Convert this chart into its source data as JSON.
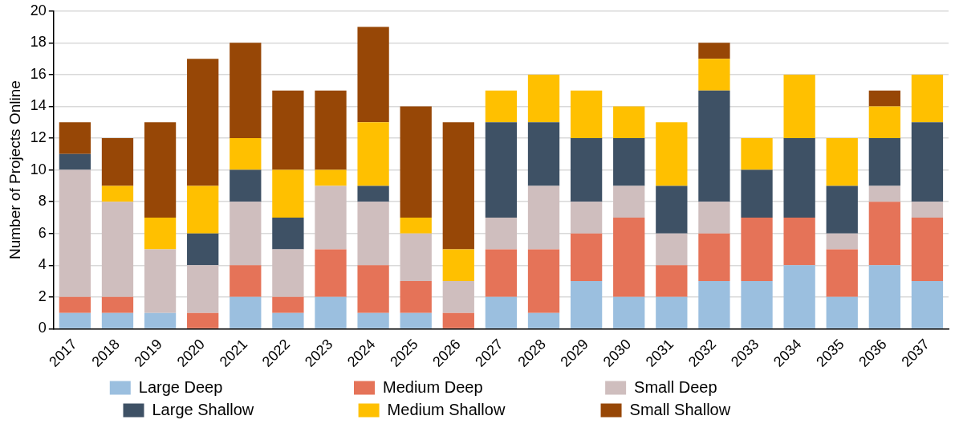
{
  "chart_data": {
    "type": "bar",
    "stacked": true,
    "ylabel": "Number of Projects Online",
    "categories": [
      "2017",
      "2018",
      "2019",
      "2020",
      "2021",
      "2022",
      "2023",
      "2024",
      "2025",
      "2026",
      "2027",
      "2028",
      "2029",
      "2030",
      "2031",
      "2032",
      "2033",
      "2034",
      "2035",
      "2036",
      "2037"
    ],
    "series": [
      {
        "name": "Large Deep",
        "color": "#9bbfdf",
        "values": [
          1,
          1,
          1,
          0,
          2,
          1,
          2,
          1,
          1,
          0,
          2,
          1,
          3,
          2,
          2,
          3,
          3,
          4,
          2,
          4,
          3
        ]
      },
      {
        "name": "Medium Deep",
        "color": "#e57358",
        "values": [
          1,
          1,
          0,
          1,
          2,
          1,
          3,
          3,
          2,
          1,
          3,
          4,
          3,
          5,
          2,
          3,
          4,
          3,
          3,
          4,
          4
        ]
      },
      {
        "name": "Small Deep",
        "color": "#cfbebe",
        "values": [
          8,
          6,
          4,
          3,
          4,
          3,
          4,
          4,
          3,
          2,
          2,
          4,
          2,
          2,
          2,
          2,
          0,
          0,
          1,
          1,
          1
        ]
      },
      {
        "name": "Large Shallow",
        "color": "#3e5165",
        "values": [
          1,
          0,
          0,
          2,
          2,
          2,
          0,
          1,
          0,
          0,
          6,
          4,
          4,
          3,
          3,
          7,
          3,
          5,
          3,
          3,
          5
        ]
      },
      {
        "name": "Medium Shallow",
        "color": "#ffc000",
        "values": [
          0,
          1,
          2,
          3,
          2,
          3,
          1,
          4,
          1,
          2,
          2,
          3,
          3,
          2,
          4,
          2,
          2,
          4,
          3,
          2,
          3
        ]
      },
      {
        "name": "Small Shallow",
        "color": "#974706",
        "values": [
          2,
          3,
          6,
          8,
          6,
          5,
          5,
          6,
          7,
          8,
          0,
          0,
          0,
          0,
          0,
          1,
          0,
          0,
          0,
          1,
          0
        ]
      }
    ],
    "ylim": [
      0,
      20
    ],
    "yticks": [
      0,
      2,
      4,
      6,
      8,
      10,
      12,
      14,
      16,
      18,
      20
    ],
    "grid": "y",
    "legend": "bottom"
  }
}
